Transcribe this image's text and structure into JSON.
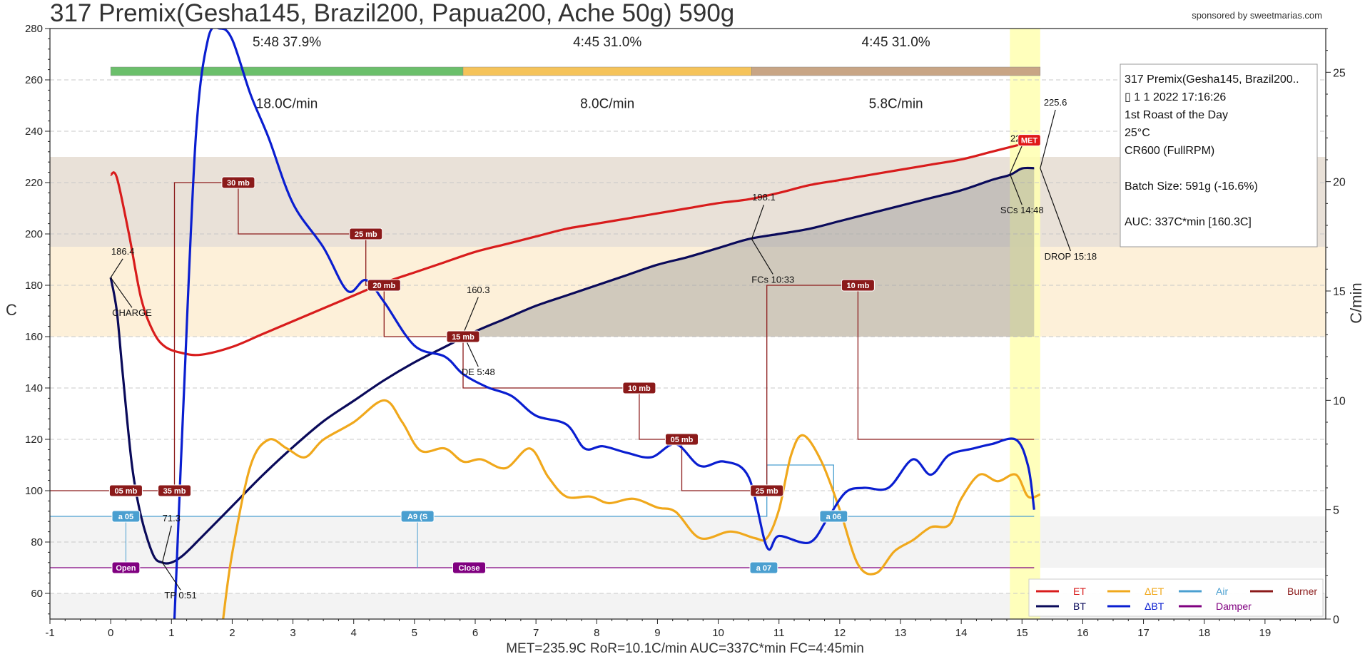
{
  "title": "317 Premix(Gesha145, Brazil200, Papua200, Ache 50g) 590g",
  "sponsor": "sponsored by sweetmarias.com",
  "footer": "MET=235.9C   RoR=10.1C/min   AUC=337C*min   FC=4:45min",
  "colors": {
    "et": "#d81c1c",
    "bt": "#0a0a5a",
    "det": "#f0a81c",
    "dbt": "#0a1ed0",
    "air": "#4a9fd0",
    "damper": "#800080",
    "burner": "#8b1a1a",
    "phase_dry": "#6bbf6b",
    "phase_maillard": "#f5c35a",
    "phase_dev": "#c8a585",
    "band_upper": "#e9e1d8",
    "band_lower": "#fdf0d9",
    "band_gray": "#f3f3f3",
    "drop_band": "#ffffb0"
  },
  "chart_data": {
    "type": "line",
    "xlabel": "",
    "ylabel": "C",
    "y2label": "C/min",
    "xlim": [
      -1,
      20
    ],
    "ylim": [
      50,
      280
    ],
    "y2lim": [
      0,
      27
    ],
    "xticks": [
      -1,
      0,
      1,
      2,
      3,
      4,
      5,
      6,
      7,
      8,
      9,
      10,
      11,
      12,
      13,
      14,
      15,
      16,
      17,
      18,
      19
    ],
    "yticks": [
      60,
      80,
      100,
      120,
      140,
      160,
      180,
      200,
      220,
      240,
      260,
      280
    ],
    "y2ticks": [
      0,
      5,
      10,
      15,
      20,
      25
    ],
    "grid": true,
    "legend_position": "bottom-right",
    "phases": [
      {
        "label": "5:48  37.9%",
        "rate": "18.0C/min",
        "x0": 0,
        "x1": 5.8,
        "color_key": "phase_dry"
      },
      {
        "label": "4:45  31.0%",
        "rate": "8.0C/min",
        "x0": 5.8,
        "x1": 10.55,
        "color_key": "phase_maillard"
      },
      {
        "label": "4:45  31.0%",
        "rate": "5.8C/min",
        "x0": 10.55,
        "x1": 15.3,
        "color_key": "phase_dev"
      }
    ],
    "bands": [
      {
        "y0": 195,
        "y1": 230,
        "color_key": "band_upper"
      },
      {
        "y0": 160,
        "y1": 195,
        "color_key": "band_lower"
      },
      {
        "y0": 70,
        "y1": 90,
        "color_key": "band_gray"
      },
      {
        "y0": 50,
        "y1": 60,
        "color_key": "band_gray"
      }
    ],
    "drop_band": [
      14.8,
      15.3
    ],
    "series": [
      {
        "name": "ET",
        "color_key": "et",
        "axis": "left",
        "points": [
          [
            0,
            223
          ],
          [
            0.1,
            222
          ],
          [
            0.3,
            200
          ],
          [
            0.5,
            175
          ],
          [
            0.7,
            162
          ],
          [
            0.9,
            156
          ],
          [
            1.2,
            153.5
          ],
          [
            1.5,
            153
          ],
          [
            2,
            156
          ],
          [
            2.5,
            161
          ],
          [
            3,
            166
          ],
          [
            3.5,
            171
          ],
          [
            4,
            176
          ],
          [
            4.5,
            181
          ],
          [
            5,
            185
          ],
          [
            5.5,
            189
          ],
          [
            6,
            193
          ],
          [
            6.5,
            196
          ],
          [
            7,
            199
          ],
          [
            7.5,
            202
          ],
          [
            8,
            204
          ],
          [
            8.5,
            206
          ],
          [
            9,
            208
          ],
          [
            9.5,
            210
          ],
          [
            10,
            212
          ],
          [
            10.5,
            213.5
          ],
          [
            11,
            216
          ],
          [
            11.5,
            219
          ],
          [
            12,
            221
          ],
          [
            12.5,
            223
          ],
          [
            13,
            225
          ],
          [
            13.5,
            227
          ],
          [
            14,
            229
          ],
          [
            14.5,
            232
          ],
          [
            15,
            235
          ],
          [
            15.2,
            236
          ]
        ]
      },
      {
        "name": "BT",
        "color_key": "bt",
        "axis": "left",
        "points": [
          [
            0,
            183
          ],
          [
            0.1,
            170
          ],
          [
            0.2,
            145
          ],
          [
            0.35,
            110
          ],
          [
            0.5,
            90
          ],
          [
            0.7,
            75
          ],
          [
            0.85,
            72
          ],
          [
            1,
            72
          ],
          [
            1.2,
            75
          ],
          [
            1.5,
            82
          ],
          [
            2,
            94
          ],
          [
            2.5,
            106
          ],
          [
            3,
            117
          ],
          [
            3.5,
            127
          ],
          [
            4,
            135
          ],
          [
            4.5,
            143
          ],
          [
            5,
            150
          ],
          [
            5.5,
            156
          ],
          [
            6,
            162
          ],
          [
            6.5,
            167
          ],
          [
            7,
            172
          ],
          [
            7.5,
            176
          ],
          [
            8,
            180
          ],
          [
            8.5,
            184
          ],
          [
            9,
            188
          ],
          [
            9.5,
            191
          ],
          [
            10,
            194.5
          ],
          [
            10.5,
            198
          ],
          [
            11,
            200
          ],
          [
            11.5,
            202
          ],
          [
            12,
            205
          ],
          [
            12.5,
            208
          ],
          [
            13,
            211
          ],
          [
            13.5,
            214
          ],
          [
            14,
            217
          ],
          [
            14.5,
            221
          ],
          [
            14.8,
            223
          ],
          [
            15,
            225.5
          ],
          [
            15.2,
            225.6
          ]
        ]
      },
      {
        "name": "ΔET",
        "color_key": "det",
        "axis": "right",
        "points": [
          [
            1.85,
            0
          ],
          [
            2,
            3
          ],
          [
            2.3,
            7
          ],
          [
            2.6,
            8.2
          ],
          [
            2.9,
            7.8
          ],
          [
            3.2,
            7.4
          ],
          [
            3.5,
            8.2
          ],
          [
            4,
            9
          ],
          [
            4.5,
            10
          ],
          [
            4.8,
            9
          ],
          [
            5.1,
            7.7
          ],
          [
            5.5,
            7.8
          ],
          [
            5.8,
            7.2
          ],
          [
            6.1,
            7.3
          ],
          [
            6.5,
            6.9
          ],
          [
            6.9,
            7.8
          ],
          [
            7.2,
            6.5
          ],
          [
            7.5,
            5.6
          ],
          [
            7.9,
            5.6
          ],
          [
            8.2,
            5.3
          ],
          [
            8.6,
            5.5
          ],
          [
            9,
            5.1
          ],
          [
            9.3,
            4.9
          ],
          [
            9.7,
            3.7
          ],
          [
            10.2,
            4.0
          ],
          [
            10.6,
            3.7
          ],
          [
            10.8,
            3.7
          ],
          [
            11,
            5.0
          ],
          [
            11.2,
            7.5
          ],
          [
            11.4,
            8.4
          ],
          [
            11.7,
            7.2
          ],
          [
            12,
            5.0
          ],
          [
            12.3,
            2.5
          ],
          [
            12.6,
            2.1
          ],
          [
            12.9,
            3.1
          ],
          [
            13.2,
            3.6
          ],
          [
            13.5,
            4.2
          ],
          [
            13.8,
            4.3
          ],
          [
            14,
            5.5
          ],
          [
            14.3,
            6.6
          ],
          [
            14.6,
            6.3
          ],
          [
            14.9,
            6.6
          ],
          [
            15.1,
            5.6
          ],
          [
            15.3,
            5.7
          ]
        ]
      },
      {
        "name": "ΔBT",
        "color_key": "dbt",
        "axis": "right",
        "points": [
          [
            1.05,
            0
          ],
          [
            1.2,
            10
          ],
          [
            1.4,
            22
          ],
          [
            1.6,
            26.5
          ],
          [
            1.8,
            27
          ],
          [
            2,
            26.5
          ],
          [
            2.3,
            24
          ],
          [
            2.6,
            22
          ],
          [
            3,
            19
          ],
          [
            3.5,
            17
          ],
          [
            3.9,
            15
          ],
          [
            4.2,
            15.5
          ],
          [
            4.5,
            14.5
          ],
          [
            5,
            12.5
          ],
          [
            5.5,
            12
          ],
          [
            5.8,
            11.2
          ],
          [
            6.2,
            10.6
          ],
          [
            6.6,
            10.2
          ],
          [
            7,
            9.3
          ],
          [
            7.5,
            8.9
          ],
          [
            7.8,
            7.8
          ],
          [
            8.1,
            7.9
          ],
          [
            8.5,
            7.6
          ],
          [
            8.9,
            7.4
          ],
          [
            9.3,
            8.0
          ],
          [
            9.7,
            7.0
          ],
          [
            10.1,
            7.2
          ],
          [
            10.5,
            6.5
          ],
          [
            10.8,
            3.3
          ],
          [
            11,
            3.8
          ],
          [
            11.5,
            3.5
          ],
          [
            11.8,
            4.6
          ],
          [
            12.1,
            5.8
          ],
          [
            12.4,
            6.0
          ],
          [
            12.8,
            6.0
          ],
          [
            13.2,
            7.3
          ],
          [
            13.5,
            6.6
          ],
          [
            13.8,
            7.5
          ],
          [
            14.2,
            7.8
          ],
          [
            14.5,
            8.0
          ],
          [
            14.9,
            8.2
          ],
          [
            15.1,
            7.0
          ],
          [
            15.2,
            5.0
          ]
        ]
      }
    ],
    "controls": [
      {
        "name": "Air",
        "color_key": "air",
        "points": [
          [
            -1,
            90
          ],
          [
            10.8,
            90
          ],
          [
            10.8,
            110
          ],
          [
            11.9,
            110
          ],
          [
            11.9,
            90
          ],
          [
            15.2,
            90
          ]
        ]
      },
      {
        "name": "Damper",
        "color_key": "damper",
        "points": [
          [
            -1,
            70
          ],
          [
            15.2,
            70
          ]
        ]
      },
      {
        "name": "Burner",
        "color_key": "burner",
        "points": [
          [
            -1,
            100
          ],
          [
            1.05,
            100
          ],
          [
            1.05,
            220
          ],
          [
            2.1,
            220
          ],
          [
            2.1,
            200
          ],
          [
            4.2,
            200
          ],
          [
            4.2,
            180
          ],
          [
            4.5,
            180
          ],
          [
            4.5,
            160
          ],
          [
            5.8,
            160
          ],
          [
            5.8,
            140
          ],
          [
            8.7,
            140
          ],
          [
            8.7,
            120
          ],
          [
            9.4,
            120
          ],
          [
            9.4,
            100
          ],
          [
            10.8,
            100
          ],
          [
            10.8,
            180
          ],
          [
            12.3,
            180
          ],
          [
            12.3,
            120
          ],
          [
            15.2,
            120
          ]
        ]
      }
    ],
    "burner_labels": [
      {
        "x": 0.25,
        "y": 100,
        "text": "05 mb"
      },
      {
        "x": 1.05,
        "y": 100,
        "text": "35 mb"
      },
      {
        "x": 2.1,
        "y": 220,
        "text": "30 mb"
      },
      {
        "x": 4.2,
        "y": 200,
        "text": "25 mb"
      },
      {
        "x": 4.5,
        "y": 180,
        "text": "20 mb"
      },
      {
        "x": 5.8,
        "y": 160,
        "text": "15 mb"
      },
      {
        "x": 8.7,
        "y": 140,
        "text": "10 mb"
      },
      {
        "x": 9.4,
        "y": 120,
        "text": "05 mb"
      },
      {
        "x": 10.8,
        "y": 100,
        "text": "25 mb"
      },
      {
        "x": 12.3,
        "y": 180,
        "text": "10 mb"
      }
    ],
    "air_labels": [
      {
        "x": 0.25,
        "y": 90,
        "text": "a 05"
      },
      {
        "x": 5.05,
        "y": 90,
        "text": "A9 (S"
      },
      {
        "x": 10.75,
        "y": 70,
        "text": "a 07"
      },
      {
        "x": 11.9,
        "y": 90,
        "text": "a 06"
      }
    ],
    "damper_labels": [
      {
        "x": 0.25,
        "y": 70,
        "text": "Open"
      },
      {
        "x": 5.9,
        "y": 70,
        "text": "Close"
      }
    ],
    "annotations": [
      {
        "text": "186.4",
        "x": 0.0,
        "y": 183,
        "lx": 0.2,
        "ly": 192
      },
      {
        "text": "CHARGE",
        "x": 0.0,
        "y": 183,
        "lx": 0.35,
        "ly": 168
      },
      {
        "text": "71.3",
        "x": 0.85,
        "y": 72,
        "lx": 1.0,
        "ly": 88
      },
      {
        "text": "TP 0:51",
        "x": 0.85,
        "y": 72,
        "lx": 1.15,
        "ly": 58
      },
      {
        "text": "160.3",
        "x": 5.8,
        "y": 161,
        "lx": 6.05,
        "ly": 177
      },
      {
        "text": "DE 5:48",
        "x": 5.8,
        "y": 161,
        "lx": 6.05,
        "ly": 145
      },
      {
        "text": "198.1",
        "x": 10.55,
        "y": 198,
        "lx": 10.75,
        "ly": 213
      },
      {
        "text": "FCs 10:33",
        "x": 10.55,
        "y": 198,
        "lx": 10.9,
        "ly": 181
      },
      {
        "text": "223.4",
        "x": 14.8,
        "y": 223.4,
        "lx": 15.0,
        "ly": 236
      },
      {
        "text": "SCs 14:48",
        "x": 14.8,
        "y": 223.4,
        "lx": 15.0,
        "ly": 208
      },
      {
        "text": "225.6",
        "x": 15.3,
        "y": 225.6,
        "lx": 15.55,
        "ly": 250
      },
      {
        "text": "DROP 15:18",
        "x": 15.3,
        "y": 225.6,
        "lx": 15.8,
        "ly": 190
      }
    ],
    "met_marker": {
      "x": 15.12,
      "y": 236.5,
      "text": "MET"
    },
    "info_box": [
      "317 Premix(Gesha145, Brazil200..",
      "▯ 1 1 2022 17:16:26",
      "1st Roast of the Day",
      "25°C",
      "CR600 (FullRPM)",
      "",
      "Batch Size: 591g (-16.6%)",
      "",
      "AUC: 337C*min [160.3C]"
    ],
    "legend": [
      {
        "name": "ET",
        "color_key": "et"
      },
      {
        "name": "ΔET",
        "color_key": "det"
      },
      {
        "name": "Air",
        "color_key": "air"
      },
      {
        "name": "Burner",
        "color_key": "burner"
      },
      {
        "name": "BT",
        "color_key": "bt"
      },
      {
        "name": "ΔBT",
        "color_key": "dbt"
      },
      {
        "name": "Damper",
        "color_key": "damper"
      }
    ]
  }
}
